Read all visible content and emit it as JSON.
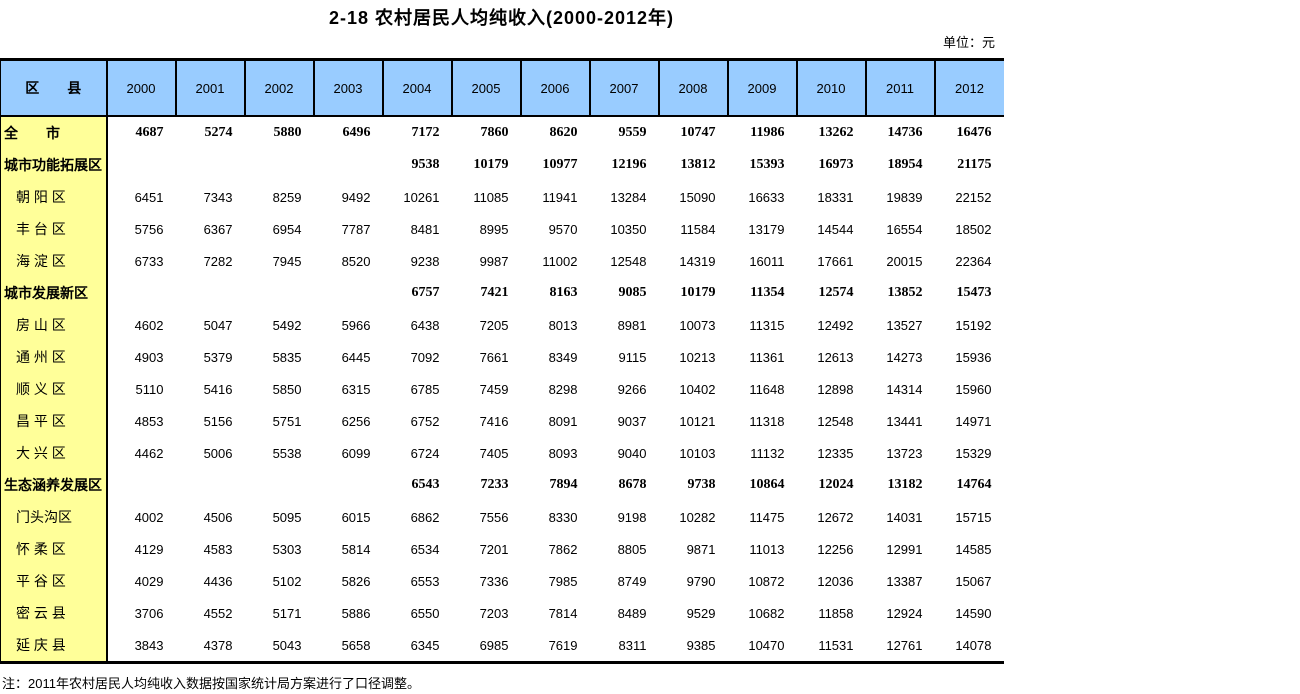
{
  "title": "2-18 农村居民人均纯收入(2000-2012年)",
  "unit_label": "单位：元",
  "note": "注：2011年农村居民人均纯收入数据按国家统计局方案进行了口径调整。",
  "colors": {
    "header_bg": "#99CCFF",
    "label_column_bg": "#FFFF99",
    "border": "#000000",
    "background": "#FFFFFF"
  },
  "table": {
    "corner_header": "区　　县",
    "years": [
      "2000",
      "2001",
      "2002",
      "2003",
      "2004",
      "2005",
      "2006",
      "2007",
      "2008",
      "2009",
      "2010",
      "2011",
      "2012"
    ],
    "rows": [
      {
        "label": "全　　市",
        "bold": true,
        "values": [
          "4687",
          "5274",
          "5880",
          "6496",
          "7172",
          "7860",
          "8620",
          "9559",
          "10747",
          "11986",
          "13262",
          "14736",
          "16476"
        ]
      },
      {
        "label": "城市功能拓展区",
        "bold": true,
        "values": [
          "",
          "",
          "",
          "",
          "9538",
          "10179",
          "10977",
          "12196",
          "13812",
          "15393",
          "16973",
          "18954",
          "21175"
        ]
      },
      {
        "label": "朝 阳 区",
        "bold": false,
        "values": [
          "6451",
          "7343",
          "8259",
          "9492",
          "10261",
          "11085",
          "11941",
          "13284",
          "15090",
          "16633",
          "18331",
          "19839",
          "22152"
        ]
      },
      {
        "label": "丰 台 区",
        "bold": false,
        "values": [
          "5756",
          "6367",
          "6954",
          "7787",
          "8481",
          "8995",
          "9570",
          "10350",
          "11584",
          "13179",
          "14544",
          "16554",
          "18502"
        ]
      },
      {
        "label": "海 淀 区",
        "bold": false,
        "values": [
          "6733",
          "7282",
          "7945",
          "8520",
          "9238",
          "9987",
          "11002",
          "12548",
          "14319",
          "16011",
          "17661",
          "20015",
          "22364"
        ]
      },
      {
        "label": "城市发展新区",
        "bold": true,
        "values": [
          "",
          "",
          "",
          "",
          "6757",
          "7421",
          "8163",
          "9085",
          "10179",
          "11354",
          "12574",
          "13852",
          "15473"
        ]
      },
      {
        "label": "房 山 区",
        "bold": false,
        "values": [
          "4602",
          "5047",
          "5492",
          "5966",
          "6438",
          "7205",
          "8013",
          "8981",
          "10073",
          "11315",
          "12492",
          "13527",
          "15192"
        ]
      },
      {
        "label": "通 州 区",
        "bold": false,
        "values": [
          "4903",
          "5379",
          "5835",
          "6445",
          "7092",
          "7661",
          "8349",
          "9115",
          "10213",
          "11361",
          "12613",
          "14273",
          "15936"
        ]
      },
      {
        "label": "顺 义 区",
        "bold": false,
        "values": [
          "5110",
          "5416",
          "5850",
          "6315",
          "6785",
          "7459",
          "8298",
          "9266",
          "10402",
          "11648",
          "12898",
          "14314",
          "15960"
        ]
      },
      {
        "label": "昌 平 区",
        "bold": false,
        "values": [
          "4853",
          "5156",
          "5751",
          "6256",
          "6752",
          "7416",
          "8091",
          "9037",
          "10121",
          "11318",
          "12548",
          "13441",
          "14971"
        ]
      },
      {
        "label": "大 兴 区",
        "bold": false,
        "values": [
          "4462",
          "5006",
          "5538",
          "6099",
          "6724",
          "7405",
          "8093",
          "9040",
          "10103",
          "11132",
          "12335",
          "13723",
          "15329"
        ]
      },
      {
        "label": "生态涵养发展区",
        "bold": true,
        "values": [
          "",
          "",
          "",
          "",
          "6543",
          "7233",
          "7894",
          "8678",
          "9738",
          "10864",
          "12024",
          "13182",
          "14764"
        ]
      },
      {
        "label": "门头沟区",
        "bold": false,
        "values": [
          "4002",
          "4506",
          "5095",
          "6015",
          "6862",
          "7556",
          "8330",
          "9198",
          "10282",
          "11475",
          "12672",
          "14031",
          "15715"
        ]
      },
      {
        "label": "怀 柔 区",
        "bold": false,
        "values": [
          "4129",
          "4583",
          "5303",
          "5814",
          "6534",
          "7201",
          "7862",
          "8805",
          "9871",
          "11013",
          "12256",
          "12991",
          "14585"
        ]
      },
      {
        "label": "平 谷 区",
        "bold": false,
        "values": [
          "4029",
          "4436",
          "5102",
          "5826",
          "6553",
          "7336",
          "7985",
          "8749",
          "9790",
          "10872",
          "12036",
          "13387",
          "15067"
        ]
      },
      {
        "label": "密 云 县",
        "bold": false,
        "values": [
          "3706",
          "4552",
          "5171",
          "5886",
          "6550",
          "7203",
          "7814",
          "8489",
          "9529",
          "10682",
          "11858",
          "12924",
          "14590"
        ]
      },
      {
        "label": "延 庆 县",
        "bold": false,
        "values": [
          "3843",
          "4378",
          "5043",
          "5658",
          "6345",
          "6985",
          "7619",
          "8311",
          "9385",
          "10470",
          "11531",
          "12761",
          "14078"
        ]
      }
    ]
  }
}
